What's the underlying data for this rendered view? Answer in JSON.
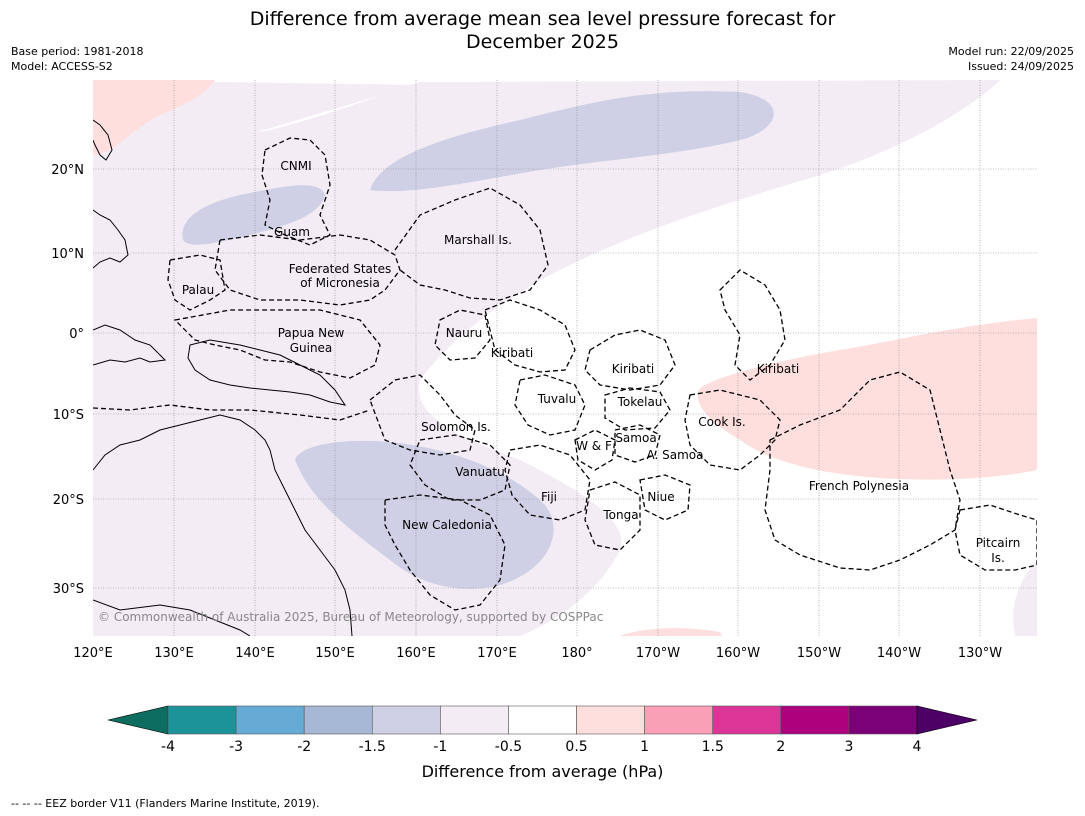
{
  "title_line1": "Difference from average mean sea level pressure forecast for",
  "title_line2": "December 2025",
  "meta_left": [
    "Base period: 1981-2018",
    "Model: ACCESS-S2"
  ],
  "meta_right": [
    "Model run: 22/09/2025",
    "Issued: 24/09/2025"
  ],
  "lat_labels": [
    "20°N",
    "10°N",
    "0°",
    "10°S",
    "20°S",
    "30°S"
  ],
  "lon_labels": [
    "120°E",
    "130°E",
    "140°E",
    "150°E",
    "160°E",
    "170°E",
    "180°",
    "170°W",
    "160°W",
    "150°W",
    "140°W",
    "130°W"
  ],
  "regions": [
    {
      "name": "CNMI",
      "lines": [
        "CNMI"
      ]
    },
    {
      "name": "Guam",
      "lines": [
        "Guam"
      ]
    },
    {
      "name": "Marshall Is.",
      "lines": [
        "Marshall Is."
      ]
    },
    {
      "name": "Federated States of Micronesia",
      "lines": [
        "Federated States",
        "of Micronesia"
      ]
    },
    {
      "name": "Palau",
      "lines": [
        "Palau"
      ]
    },
    {
      "name": "Papua New Guinea",
      "lines": [
        "Papua New",
        "Guinea"
      ]
    },
    {
      "name": "Nauru",
      "lines": [
        "Nauru"
      ]
    },
    {
      "name": "Kiribati west",
      "lines": [
        "Kiribati"
      ]
    },
    {
      "name": "Kiribati central",
      "lines": [
        "Kiribati"
      ]
    },
    {
      "name": "Kiribati east",
      "lines": [
        "Kiribati"
      ]
    },
    {
      "name": "Tuvalu",
      "lines": [
        "Tuvalu"
      ]
    },
    {
      "name": "Tokelau",
      "lines": [
        "Tokelau"
      ]
    },
    {
      "name": "Cook Is.",
      "lines": [
        "Cook Is."
      ]
    },
    {
      "name": "Solomon Is.",
      "lines": [
        "Solomon Is."
      ]
    },
    {
      "name": "Samoa",
      "lines": [
        "Samoa"
      ]
    },
    {
      "name": "W & F",
      "lines": [
        "W & F"
      ]
    },
    {
      "name": "A. Samoa",
      "lines": [
        "A. Samoa"
      ]
    },
    {
      "name": "Vanuatu",
      "lines": [
        "Vanuatu"
      ]
    },
    {
      "name": "Fiji",
      "lines": [
        "Fiji"
      ]
    },
    {
      "name": "Niue",
      "lines": [
        "Niue"
      ]
    },
    {
      "name": "Tonga",
      "lines": [
        "Tonga"
      ]
    },
    {
      "name": "French Polynesia",
      "lines": [
        "French Polynesia"
      ]
    },
    {
      "name": "New Caledonia",
      "lines": [
        "New Caledonia"
      ]
    },
    {
      "name": "Pitcairn Is.",
      "lines": [
        "Pitcairn",
        "Is."
      ]
    }
  ],
  "copyright": "© Commonwealth of Australia 2025, Bureau of Meteorology, supported by COSPPac",
  "colorbar": {
    "ticks": [
      "-4",
      "-3",
      "-2",
      "-1.5",
      "-1",
      "-0.5",
      "0.5",
      "1",
      "1.5",
      "2",
      "3",
      "4"
    ],
    "colors": [
      "#1b9399",
      "#66aad6",
      "#a6b8d6",
      "#cfd0e6",
      "#f3ecf5",
      "#ffffff",
      "#ffdede",
      "#f9a0b6",
      "#dd3597",
      "#ae017e",
      "#7a0177"
    ],
    "under_color": "#0e6d61",
    "over_color": "#4d0066",
    "label": "Difference from average (hPa)"
  },
  "footnote": "--  --  -- EEZ border V11 (Flanders Marine Institute, 2019)."
}
